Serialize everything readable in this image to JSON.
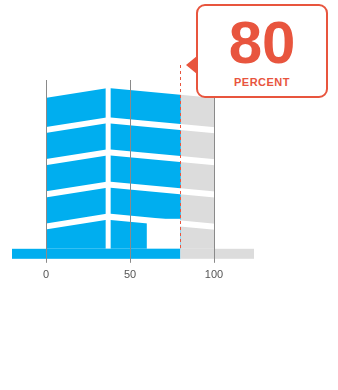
{
  "chart_data": {
    "type": "bar",
    "orientation": "horizontal",
    "categories": [
      null
    ],
    "values": [
      80
    ],
    "color": "#00aeef",
    "xlim": [
      0,
      100
    ],
    "xticks": [
      0,
      50,
      100
    ],
    "grid": true,
    "data_labels": true,
    "annotation": "PERCENT"
  }
}
